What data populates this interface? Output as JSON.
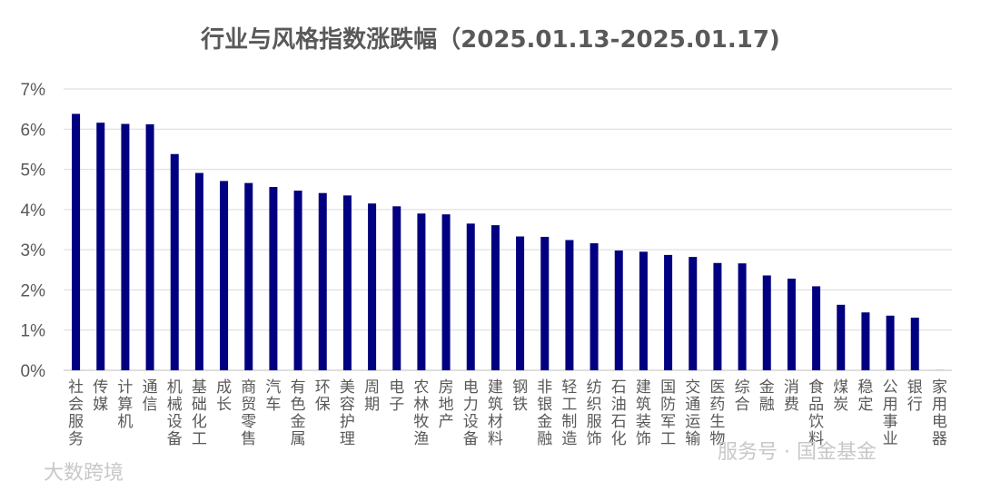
{
  "chart_data": {
    "type": "bar",
    "title": "行业与风格指数涨跌幅（2025.01.13-2025.01.17)",
    "xlabel": "",
    "ylabel": "",
    "ylim": [
      0,
      7
    ],
    "yticks": [
      "0%",
      "1%",
      "2%",
      "3%",
      "4%",
      "5%",
      "6%",
      "7%"
    ],
    "grid": true,
    "legend": "none",
    "bar_color": "#000080",
    "categories": [
      "社会服务",
      "传媒",
      "计算机",
      "通信",
      "机械设备",
      "基础化工",
      "成长",
      "商贸零售",
      "汽车",
      "有色金属",
      "环保",
      "美容护理",
      "周期",
      "电子",
      "农林牧渔",
      "房地产",
      "电力设备",
      "建筑材料",
      "钢铁",
      "非银金融",
      "轻工制造",
      "纺织服饰",
      "石油石化",
      "建筑装饰",
      "国防军工",
      "交通运输",
      "医药生物",
      "综合",
      "金融",
      "消费",
      "食品饮料",
      "煤炭",
      "稳定",
      "公用事业",
      "银行",
      "家用电器"
    ],
    "values": [
      6.38,
      6.16,
      6.13,
      6.12,
      5.38,
      4.91,
      4.71,
      4.66,
      4.56,
      4.47,
      4.41,
      4.35,
      4.15,
      4.08,
      3.9,
      3.88,
      3.65,
      3.61,
      3.33,
      3.32,
      3.24,
      3.16,
      2.98,
      2.95,
      2.87,
      2.82,
      2.67,
      2.66,
      2.36,
      2.28,
      2.09,
      1.63,
      1.44,
      1.36,
      1.31,
      0.02
    ]
  },
  "watermarks": {
    "left": "大数跨境",
    "right": "服务号 · 国金基金"
  }
}
